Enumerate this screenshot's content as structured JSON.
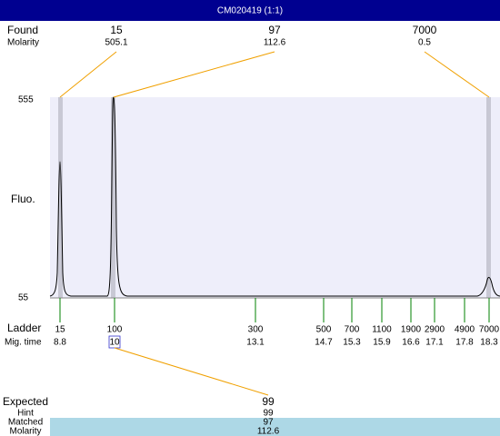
{
  "header": {
    "title": "CM020419 (1:1)"
  },
  "found": {
    "label": "Found",
    "sublabel": "Molarity",
    "peaks": [
      {
        "size": "15",
        "molarity": "505.1"
      },
      {
        "size": "97",
        "molarity": "112.6"
      },
      {
        "size": "7000",
        "molarity": "0.5"
      }
    ]
  },
  "plot": {
    "y_label": "Fluo.",
    "y_max": "555",
    "y_min": "55"
  },
  "ladder": {
    "label": "Ladder",
    "sublabel": "Mig. time",
    "sizes": [
      "15",
      "100",
      "300",
      "500",
      "700",
      "1100",
      "1900",
      "2900",
      "4900",
      "7000"
    ],
    "times": [
      "8.8",
      "10",
      "13.1",
      "14.7",
      "15.3",
      "15.9",
      "16.6",
      "17.1",
      "17.8",
      "18.3"
    ]
  },
  "expected": {
    "labels": [
      "Expected",
      "Hint",
      "Matched",
      "Molarity"
    ],
    "values": [
      "99",
      "99",
      "97",
      "112.6"
    ]
  }
}
